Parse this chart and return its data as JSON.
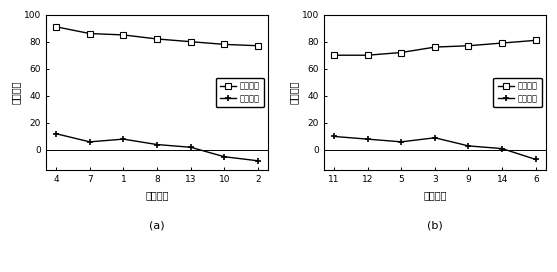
{
  "a": {
    "x_positions": [
      0,
      1,
      2,
      3,
      4,
      5,
      6
    ],
    "x_ticklabels": [
      "4",
      "7",
      "1",
      "8",
      "13",
      "10",
      "2"
    ],
    "upper_label": "买家出价",
    "lower_label": "买家费用",
    "upper_y": [
      91,
      86,
      85,
      82,
      80,
      78,
      77
    ],
    "lower_y": [
      12,
      6,
      8,
      4,
      2,
      -5,
      -8
    ],
    "ylabel": "价格量纲",
    "xlabel": "节点编号",
    "caption": "(a)",
    "ylim": [
      -15,
      100
    ],
    "yticks": [
      0,
      20,
      40,
      60,
      80,
      100
    ],
    "xlim": [
      -0.3,
      6.3
    ]
  },
  "b": {
    "x_positions": [
      0,
      1,
      2,
      3,
      4,
      5,
      6
    ],
    "x_ticklabels": [
      "11",
      "12",
      "5",
      "3",
      "9",
      "14",
      "6"
    ],
    "upper_label": "卖家出价",
    "lower_label": "卖家费用",
    "upper_y": [
      70,
      70,
      72,
      76,
      77,
      79,
      81
    ],
    "lower_y": [
      10,
      8,
      6,
      9,
      3,
      1,
      -7
    ],
    "ylabel": "价格量纲",
    "xlabel": "节点编号",
    "caption": "(b)",
    "ylim": [
      -15,
      100
    ],
    "yticks": [
      0,
      20,
      40,
      60,
      80,
      100
    ],
    "xlim": [
      -0.3,
      6.3
    ]
  },
  "line_color": "#000000",
  "upper_marker": "s",
  "lower_marker": "+",
  "upper_marker_size": 4,
  "lower_marker_size": 5,
  "line_width": 1.0,
  "font_size": 7,
  "legend_font_size": 6,
  "tick_font_size": 6.5
}
